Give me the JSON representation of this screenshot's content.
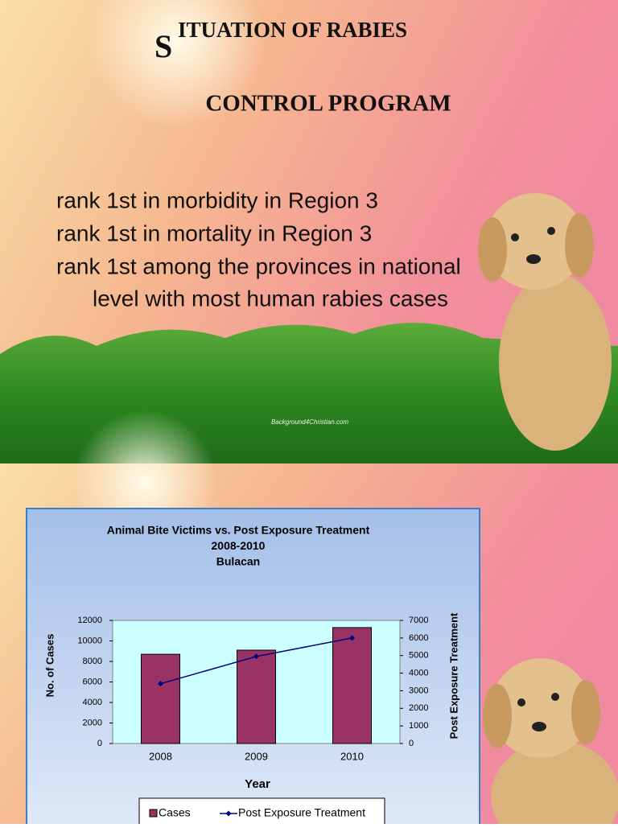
{
  "slide1": {
    "title_initial": "S",
    "title_rest": "ITUATION  OF RABIES",
    "subtitle": "CONTROL PROGRAM",
    "bullet_lines": [
      "rank 1st in morbidity in Region 3",
      "rank 1st in mortality in Region 3",
      "rank 1st among the provinces in national",
      "level with most human rabies cases"
    ],
    "watermark": "Background4Christian.com"
  },
  "chart_data": {
    "type": "bar",
    "title": [
      "Animal Bite Victims vs. Post Exposure Treatment",
      "2008-2010",
      "Bulacan"
    ],
    "x_label": "Year",
    "y_label": "No. of Cases",
    "y2_label": "Post Exposure Treatment",
    "categories": [
      "2008",
      "2009",
      "2010"
    ],
    "series": [
      {
        "name": "Cases",
        "color": "#993366",
        "type": "bar",
        "values": [
          8700,
          9100,
          11300
        ]
      },
      {
        "name": "Post Exposure Treatment",
        "color": "#000080",
        "type": "line",
        "axis": "y2",
        "values": [
          3400,
          4950,
          6000
        ]
      }
    ],
    "ylim": [
      0,
      12000
    ],
    "yticks": [
      0,
      2000,
      4000,
      6000,
      8000,
      10000,
      12000
    ],
    "y2lim": [
      0,
      7000
    ],
    "y2ticks": [
      0,
      1000,
      2000,
      3000,
      4000,
      5000,
      6000,
      7000
    ],
    "plot_background": "#ccffff"
  }
}
